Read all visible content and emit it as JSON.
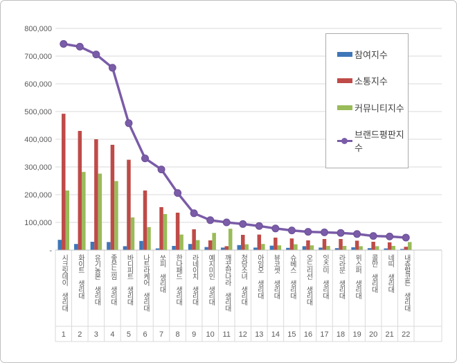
{
  "window": {
    "background": "#ffffff",
    "frame_border_color": "#bfbfbf"
  },
  "chart_data": {
    "type": "bar+line",
    "title": "",
    "xlabel": "",
    "ylabel": "",
    "grid": true,
    "legend_position": "top-right",
    "ylim": [
      0,
      800000
    ],
    "y_tick_values": [
      800000,
      700000,
      600000,
      500000,
      400000,
      300000,
      200000,
      100000,
      0
    ],
    "y_tick_labels": [
      "800,000",
      "700,000",
      "600,000",
      "500,000",
      "400,000",
      "300,000",
      "200,000",
      "100,000",
      "-"
    ],
    "categories": [
      "시크릿데이 생리대",
      "화이트 생리대",
      "유기농본 생리대",
      "좋은느낌 생리대",
      "바디피트 생리대",
      "나트라케어 생리대",
      "쏘피 생리대",
      "한나패드 생리대",
      "라네이치 생리대",
      "예지미인 생리대",
      "깨끗한나라 생리대",
      "청담소녀 생리대",
      "아임오 생리대",
      "뷰코셋 생리대",
      "슈베스 생리대",
      "오드리선 생리대",
      "잇츠미 생리대",
      "라라문 생리대",
      "위스퍼 생리대",
      "콜만 생리대",
      "네띠 생리대",
      "내츄럴코튼 생리대"
    ],
    "ranks": [
      1,
      2,
      3,
      4,
      5,
      6,
      7,
      8,
      9,
      10,
      11,
      12,
      13,
      14,
      15,
      16,
      17,
      18,
      19,
      20,
      21,
      22
    ],
    "series": [
      {
        "name": "참여지수",
        "kind": "bar",
        "color": "#3e76b8",
        "values": [
          37000,
          22000,
          30000,
          29000,
          14000,
          33000,
          6000,
          15000,
          22000,
          11000,
          9000,
          18000,
          9000,
          16000,
          8000,
          14000,
          9000,
          7000,
          10000,
          7000,
          6000,
          4000
        ]
      },
      {
        "name": "소통지수",
        "kind": "bar",
        "color": "#be4b48",
        "values": [
          492000,
          430000,
          400000,
          380000,
          326000,
          215000,
          155000,
          135000,
          75000,
          35000,
          14000,
          55000,
          56000,
          45000,
          42000,
          35000,
          40000,
          40000,
          34000,
          30000,
          28000,
          12000
        ]
      },
      {
        "name": "커뮤니티지수",
        "kind": "bar",
        "color": "#9abb59",
        "values": [
          215000,
          282000,
          276000,
          249000,
          118000,
          83000,
          130000,
          56000,
          36000,
          62000,
          77000,
          21000,
          22000,
          17000,
          21000,
          17000,
          15000,
          15000,
          14000,
          14000,
          15000,
          29000
        ]
      },
      {
        "name": "브랜드평판지수",
        "kind": "line",
        "color": "#7a5ca8",
        "marker_edge": "#6b4f96",
        "values": [
          744000,
          734000,
          706000,
          658000,
          458000,
          331000,
          291000,
          206000,
          133000,
          108000,
          100000,
          94000,
          87000,
          78000,
          71000,
          66000,
          64000,
          62000,
          58000,
          51000,
          49000,
          45000
        ]
      }
    ],
    "colors": {
      "gridline": "#d9d9d9",
      "axis_line": "#bfbfbf",
      "label_band_line": "#d9d9d9",
      "tick_text": "#595959",
      "legend_border": "#ababab"
    }
  }
}
